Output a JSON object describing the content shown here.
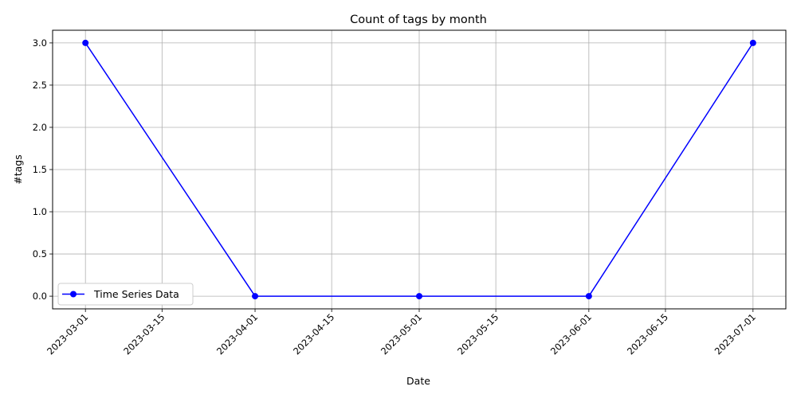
{
  "chart_data": {
    "type": "line",
    "title": "Count of tags by month",
    "xlabel": "Date",
    "ylabel": "#tags",
    "x_type": "date",
    "xlim": [
      "2023-02-23",
      "2023-07-07"
    ],
    "ylim": [
      -0.15,
      3.15
    ],
    "x_ticks": [
      "2023-03-01",
      "2023-03-15",
      "2023-04-01",
      "2023-04-15",
      "2023-05-01",
      "2023-05-15",
      "2023-06-01",
      "2023-06-15",
      "2023-07-01"
    ],
    "y_ticks": [
      "0.0",
      "0.5",
      "1.0",
      "1.5",
      "2.0",
      "2.5",
      "3.0"
    ],
    "grid": true,
    "legend_position": "lower-left",
    "series": [
      {
        "name": "Time Series Data",
        "color": "#0000ff",
        "marker": "circle",
        "x": [
          "2023-03-01",
          "2023-04-01",
          "2023-05-01",
          "2023-06-01",
          "2023-07-01"
        ],
        "y": [
          3,
          0,
          0,
          0,
          3
        ]
      }
    ]
  }
}
